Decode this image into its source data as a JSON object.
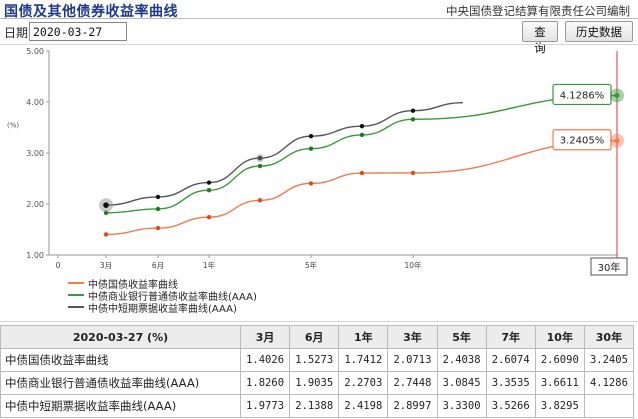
{
  "header": {
    "title": "国债及其他债券收益率曲线",
    "source": "中央国债登记结算有限责任公司编制"
  },
  "datebar": {
    "label": "日期:",
    "date_value": "2020-03-27",
    "query_button": "查询",
    "history_button": "历史数据"
  },
  "chart_data": {
    "type": "line",
    "ylabel": "(%)",
    "ylim": [
      1.0,
      5.0
    ],
    "yticks": [
      "5.00",
      "4.00",
      "3.00",
      "2.00",
      "1.00"
    ],
    "xticks": [
      "0",
      "3月",
      "6月",
      "1年",
      "5年",
      "10年"
    ],
    "x_end_label": "30年",
    "series": [
      {
        "name": "中债国债收益率曲线",
        "color": "#f07b50",
        "marker": "#e04a16",
        "points": [
          [
            "3月",
            1.4026
          ],
          [
            "6月",
            1.5273
          ],
          [
            "1年",
            1.7412
          ],
          [
            "3年",
            2.0713
          ],
          [
            "5年",
            2.4038
          ],
          [
            "7年",
            2.6074
          ],
          [
            "10年",
            2.609
          ],
          [
            "30年",
            3.2405
          ]
        ]
      },
      {
        "name": "中债商业银行普通债收益率曲线(AAA)",
        "color": "#3a9a3a",
        "marker": "#1f7a1f",
        "points": [
          [
            "3月",
            1.826
          ],
          [
            "6月",
            1.9035
          ],
          [
            "1年",
            2.2703
          ],
          [
            "3年",
            2.7448
          ],
          [
            "5年",
            3.0845
          ],
          [
            "7年",
            3.3535
          ],
          [
            "10年",
            3.6611
          ],
          [
            "30年",
            4.1286
          ]
        ]
      },
      {
        "name": "中债中短期票据收益率曲线(AAA)",
        "color": "#555555",
        "marker": "#111111",
        "points": [
          [
            "3月",
            1.9773
          ],
          [
            "6月",
            2.1388
          ],
          [
            "1年",
            2.4198
          ],
          [
            "3年",
            2.8997
          ],
          [
            "5年",
            3.33
          ],
          [
            "7年",
            3.5266
          ],
          [
            "10年",
            3.8295
          ]
        ]
      }
    ],
    "tooltips": [
      {
        "value": "4.1286%",
        "color": "#3a9a3a"
      },
      {
        "value": "3.2405%",
        "color": "#f07b50"
      }
    ],
    "grid": false,
    "legend_position": "bottom-left"
  },
  "table": {
    "date_header": "2020-03-27 (%)",
    "columns": [
      "3月",
      "6月",
      "1年",
      "3年",
      "5年",
      "7年",
      "10年",
      "30年"
    ],
    "rows": [
      {
        "name": "中债国债收益率曲线",
        "values": [
          "1.4026",
          "1.5273",
          "1.7412",
          "2.0713",
          "2.4038",
          "2.6074",
          "2.6090",
          "3.2405"
        ]
      },
      {
        "name": "中债商业银行普通债收益率曲线(AAA)",
        "values": [
          "1.8260",
          "1.9035",
          "2.2703",
          "2.7448",
          "3.0845",
          "3.3535",
          "3.6611",
          "4.1286"
        ]
      },
      {
        "name": "中债中短期票据收益率曲线(AAA)",
        "values": [
          "1.9773",
          "2.1388",
          "2.4198",
          "2.8997",
          "3.3300",
          "3.5266",
          "3.8295",
          ""
        ]
      }
    ]
  }
}
